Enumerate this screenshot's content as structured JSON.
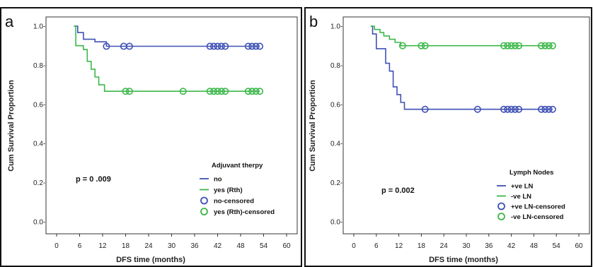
{
  "chart_data": [
    {
      "type": "line",
      "panel_label": "a",
      "xlabel": "DFS time (months)",
      "ylabel": "Cum Survival Proportion",
      "xlim": [
        0,
        60
      ],
      "ylim": [
        0,
        1.0
      ],
      "x_ticks": [
        "0",
        "6",
        "12",
        "18",
        "24",
        "30",
        "36",
        "42",
        "48",
        "54",
        "60"
      ],
      "y_ticks": [
        "0.0-",
        "0.2-",
        "0.4-",
        "0.6-",
        "0.8-",
        "1.0-"
      ],
      "annotation": "p = 0 .009",
      "legend_title": "Adjuvant therpy",
      "legend_placement": "bottom-right",
      "grid": false,
      "series": [
        {
          "name": "no",
          "color": "#3f51b5",
          "steps": [
            [
              4.5,
              1.0
            ],
            [
              5.5,
              0.967
            ],
            [
              7,
              0.933
            ],
            [
              10,
              0.92
            ],
            [
              13,
              0.897
            ],
            [
              53,
              0.897
            ]
          ],
          "censored_name": "no-censored",
          "censored_x": [
            13,
            17.5,
            19,
            40,
            41,
            42,
            43,
            44,
            50,
            51,
            52,
            53
          ],
          "censored_y": 0.897
        },
        {
          "name": "yes (Rth)",
          "color": "#3cb84a",
          "steps": [
            [
              4.5,
              1.0
            ],
            [
              5,
              0.9
            ],
            [
              7,
              0.88
            ],
            [
              8,
              0.82
            ],
            [
              9,
              0.78
            ],
            [
              10,
              0.74
            ],
            [
              11,
              0.7
            ],
            [
              12.5,
              0.667
            ],
            [
              53,
              0.667
            ]
          ],
          "censored_name": "yes (Rth)-censored",
          "censored_x": [
            18,
            19,
            33,
            40,
            41,
            42,
            43,
            44,
            50,
            51,
            52,
            53
          ],
          "censored_y": 0.667
        }
      ]
    },
    {
      "type": "line",
      "panel_label": "b",
      "xlabel": "DFS time (months)",
      "ylabel": "Cum Survival Proportion",
      "xlim": [
        0,
        60
      ],
      "ylim": [
        0,
        1.0
      ],
      "x_ticks": [
        "0",
        "6",
        "12",
        "18",
        "24",
        "30",
        "36",
        "42",
        "48",
        "54",
        "60"
      ],
      "y_ticks": [
        "0.0-",
        "0.2-",
        "0.4-",
        "0.6-",
        "0.8-",
        "1.0-"
      ],
      "annotation": "p = 0.002",
      "legend_title": "Lymph Nodes",
      "legend_placement": "bottom-right",
      "grid": false,
      "series": [
        {
          "name": "+ve LN",
          "color": "#3f51b5",
          "steps": [
            [
              4.5,
              1.0
            ],
            [
              5,
              0.96
            ],
            [
              6,
              0.885
            ],
            [
              8.5,
              0.81
            ],
            [
              9.5,
              0.77
            ],
            [
              10.5,
              0.69
            ],
            [
              11.5,
              0.65
            ],
            [
              12.5,
              0.61
            ],
            [
              13.5,
              0.575
            ],
            [
              53,
              0.575
            ]
          ],
          "censored_name": "+ve LN-censored",
          "censored_x": [
            19,
            33,
            40,
            41,
            42,
            43,
            44,
            50,
            51,
            52,
            53
          ],
          "censored_y": 0.575
        },
        {
          "name": "-ve LN",
          "color": "#3cb84a",
          "steps": [
            [
              4.5,
              1.0
            ],
            [
              5.5,
              0.983
            ],
            [
              7,
              0.967
            ],
            [
              8,
              0.95
            ],
            [
              9.5,
              0.933
            ],
            [
              11,
              0.917
            ],
            [
              12.5,
              0.9
            ],
            [
              53,
              0.9
            ]
          ],
          "censored_name": "-ve LN-censored",
          "censored_x": [
            13,
            18,
            19,
            40,
            41,
            42,
            43,
            44,
            50,
            51,
            52,
            53
          ],
          "censored_y": 0.9
        }
      ]
    }
  ]
}
